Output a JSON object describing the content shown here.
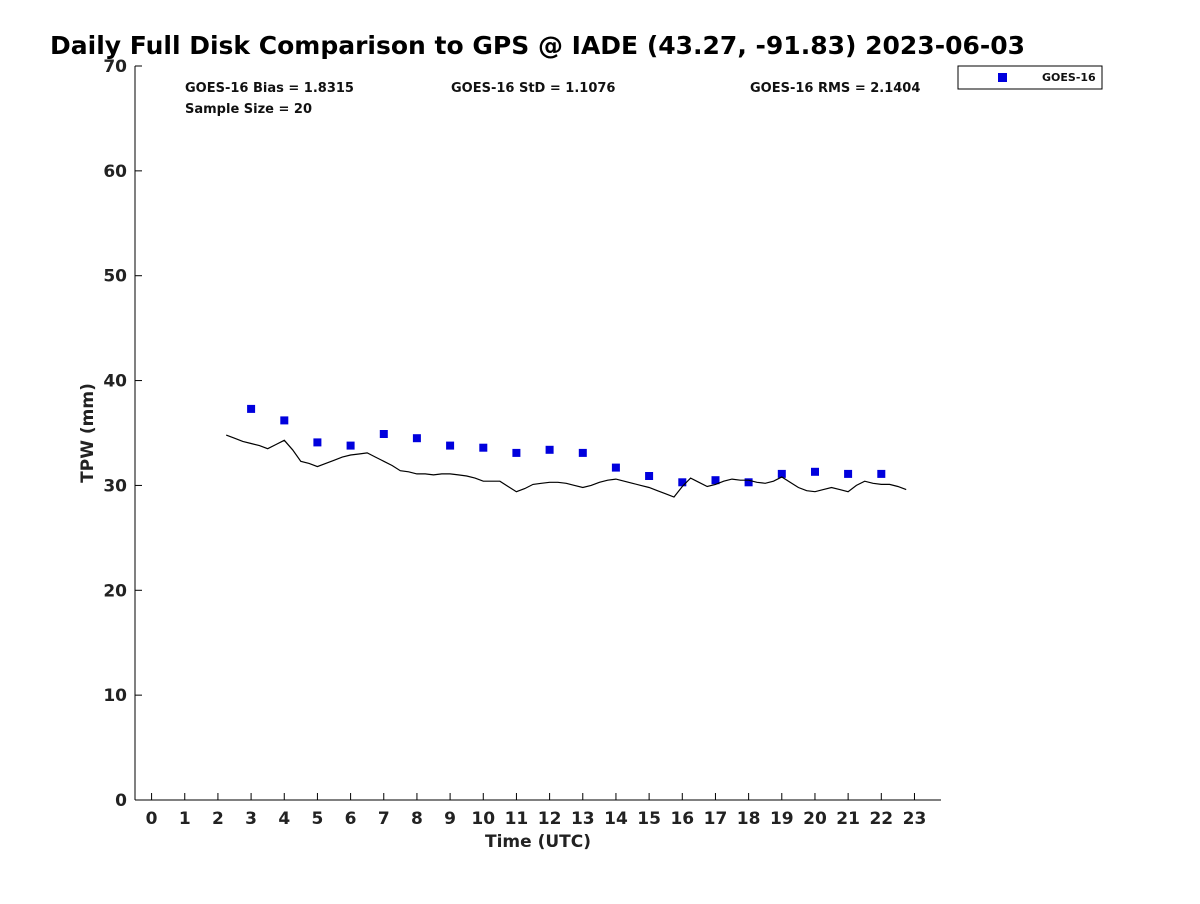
{
  "chart_data": {
    "type": "scatter",
    "title": "Daily Full Disk Comparison to GPS @ IADE (43.27, -91.83) 2023-06-03",
    "xlabel": "Time (UTC)",
    "ylabel": "TPW (mm)",
    "xlim": [
      -0.5,
      23.8
    ],
    "ylim": [
      0,
      70
    ],
    "x_ticks": [
      0,
      1,
      2,
      3,
      4,
      5,
      6,
      7,
      8,
      9,
      10,
      11,
      12,
      13,
      14,
      15,
      16,
      17,
      18,
      19,
      20,
      21,
      22,
      23
    ],
    "y_ticks": [
      0,
      10,
      20,
      30,
      40,
      50,
      60,
      70
    ],
    "grid": false,
    "legend_position": "top-right, outside plot",
    "stats": [
      "GOES-16 Bias = 1.8315",
      "GOES-16 StD = 1.1076",
      "GOES-16 RMS = 2.1404",
      "Sample Size = 20"
    ],
    "series": [
      {
        "name": "GOES-16",
        "kind": "marker",
        "color": "#0000dd",
        "marker": "square",
        "x": [
          3,
          4,
          5,
          6,
          7,
          8,
          9,
          10,
          11,
          12,
          13,
          14,
          15,
          16,
          17,
          18,
          19,
          20,
          21,
          22
        ],
        "y": [
          37.3,
          36.2,
          34.1,
          33.8,
          34.9,
          34.5,
          33.8,
          33.6,
          33.1,
          33.4,
          33.1,
          31.7,
          30.9,
          30.3,
          30.5,
          30.3,
          31.1,
          31.3,
          31.1,
          31.1
        ]
      },
      {
        "kind": "line",
        "color": "#000000",
        "x": [
          2.25,
          2.5,
          2.75,
          3.0,
          3.25,
          3.5,
          3.75,
          4.0,
          4.25,
          4.5,
          4.75,
          5.0,
          5.25,
          5.5,
          5.75,
          6.0,
          6.25,
          6.5,
          6.75,
          7.0,
          7.25,
          7.5,
          7.75,
          8.0,
          8.25,
          8.5,
          8.75,
          9.0,
          9.25,
          9.5,
          9.75,
          10.0,
          10.25,
          10.5,
          10.75,
          11.0,
          11.25,
          11.5,
          11.75,
          12.0,
          12.25,
          12.5,
          12.75,
          13.0,
          13.25,
          13.5,
          13.75,
          14.0,
          14.25,
          14.5,
          14.75,
          15.0,
          15.25,
          15.5,
          15.75,
          16.0,
          16.25,
          16.5,
          16.75,
          17.0,
          17.25,
          17.5,
          17.75,
          18.0,
          18.25,
          18.5,
          18.75,
          19.0,
          19.25,
          19.5,
          19.75,
          20.0,
          20.25,
          20.5,
          20.75,
          21.0,
          21.25,
          21.5,
          21.75,
          22.0,
          22.25,
          22.5,
          22.75
        ],
        "y": [
          34.8,
          34.5,
          34.2,
          34.0,
          33.8,
          33.5,
          33.9,
          34.3,
          33.4,
          32.3,
          32.1,
          31.8,
          32.1,
          32.4,
          32.7,
          32.9,
          33.0,
          33.1,
          32.7,
          32.3,
          31.9,
          31.4,
          31.3,
          31.1,
          31.1,
          31.0,
          31.1,
          31.1,
          31.0,
          30.9,
          30.7,
          30.4,
          30.4,
          30.4,
          29.9,
          29.4,
          29.7,
          30.1,
          30.2,
          30.3,
          30.3,
          30.2,
          30.0,
          29.8,
          30.0,
          30.3,
          30.5,
          30.6,
          30.4,
          30.2,
          30.0,
          29.8,
          29.5,
          29.2,
          28.9,
          29.9,
          30.7,
          30.3,
          29.9,
          30.1,
          30.4,
          30.6,
          30.5,
          30.5,
          30.3,
          30.2,
          30.4,
          30.8,
          30.3,
          29.8,
          29.5,
          29.4,
          29.6,
          29.8,
          29.6,
          29.4,
          30.0,
          30.4,
          30.2,
          30.1,
          30.1,
          29.9,
          29.6
        ]
      }
    ]
  }
}
